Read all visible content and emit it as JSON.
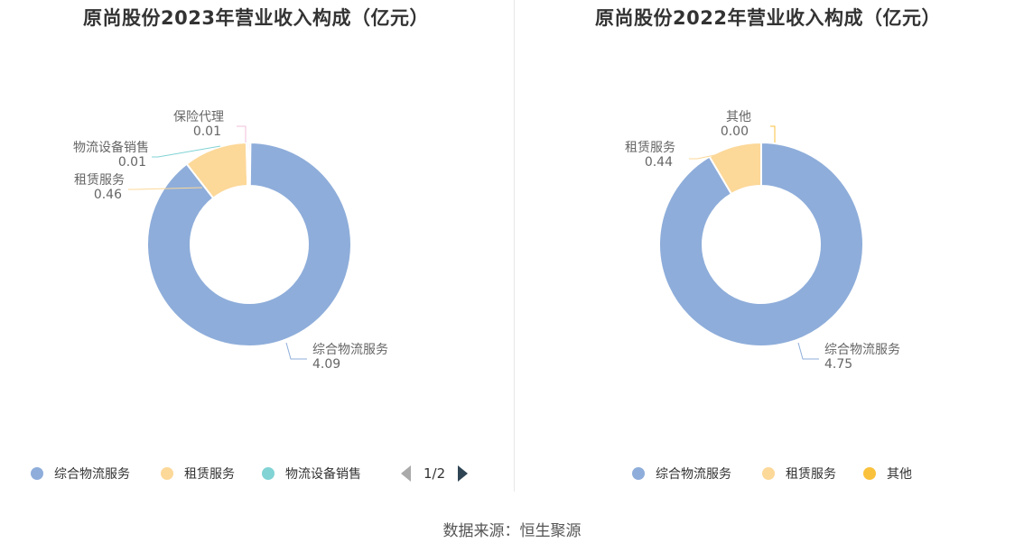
{
  "colors": {
    "integrated": "#8eadda",
    "leasing": "#fcd899",
    "equipment": "#81d3d4",
    "other": "#fac13c",
    "insurance": "#f2bfd9"
  },
  "chart_data": [
    {
      "type": "pie",
      "title": "原尚股份2023年营业收入构成（亿元）",
      "slices": [
        {
          "name": "综合物流服务",
          "value": 4.09,
          "label": "4.09",
          "color": "#8eadda"
        },
        {
          "name": "租赁服务",
          "value": 0.46,
          "label": "0.46",
          "color": "#fcd899"
        },
        {
          "name": "物流设备销售",
          "value": 0.01,
          "label": "0.01",
          "color": "#81d3d4"
        },
        {
          "name": "保险代理",
          "value": 0.01,
          "label": "0.01",
          "color": "#f2bfd9"
        }
      ],
      "legend": [
        "综合物流服务",
        "租赁服务",
        "物流设备销售"
      ],
      "pager": "1/2"
    },
    {
      "type": "pie",
      "title": "原尚股份2022年营业收入构成（亿元）",
      "slices": [
        {
          "name": "综合物流服务",
          "value": 4.75,
          "label": "4.75",
          "color": "#8eadda"
        },
        {
          "name": "租赁服务",
          "value": 0.44,
          "label": "0.44",
          "color": "#fcd899"
        },
        {
          "name": "其他",
          "value": 0.0,
          "label": "0.00",
          "color": "#fac13c"
        }
      ],
      "legend": [
        "综合物流服务",
        "租赁服务",
        "其他"
      ]
    }
  ],
  "source": "数据来源：恒生聚源"
}
